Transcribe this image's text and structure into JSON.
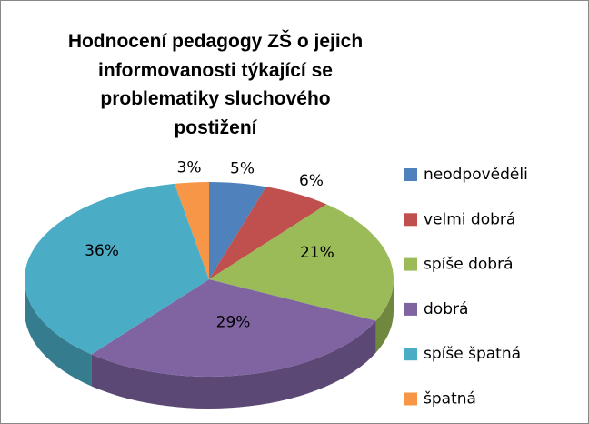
{
  "chart_data": {
    "type": "pie",
    "title": "Hodnocení pedagogy ZŠ o jejich informovanosti týkající se problematiky sluchového postižení",
    "categories": [
      "neodpověděli",
      "velmi dobrá",
      "spíše dobrá",
      "dobrá",
      "spíše špatná",
      "špatná"
    ],
    "values": [
      5,
      6,
      21,
      29,
      36,
      3
    ],
    "value_labels": [
      "5%",
      "6%",
      "21%",
      "29%",
      "36%",
      "3%"
    ],
    "colors": [
      "#4f81bd",
      "#c0504d",
      "#9bbb59",
      "#8064a2",
      "#4bacc6",
      "#f79646"
    ],
    "legend": "right",
    "three_d": true
  }
}
